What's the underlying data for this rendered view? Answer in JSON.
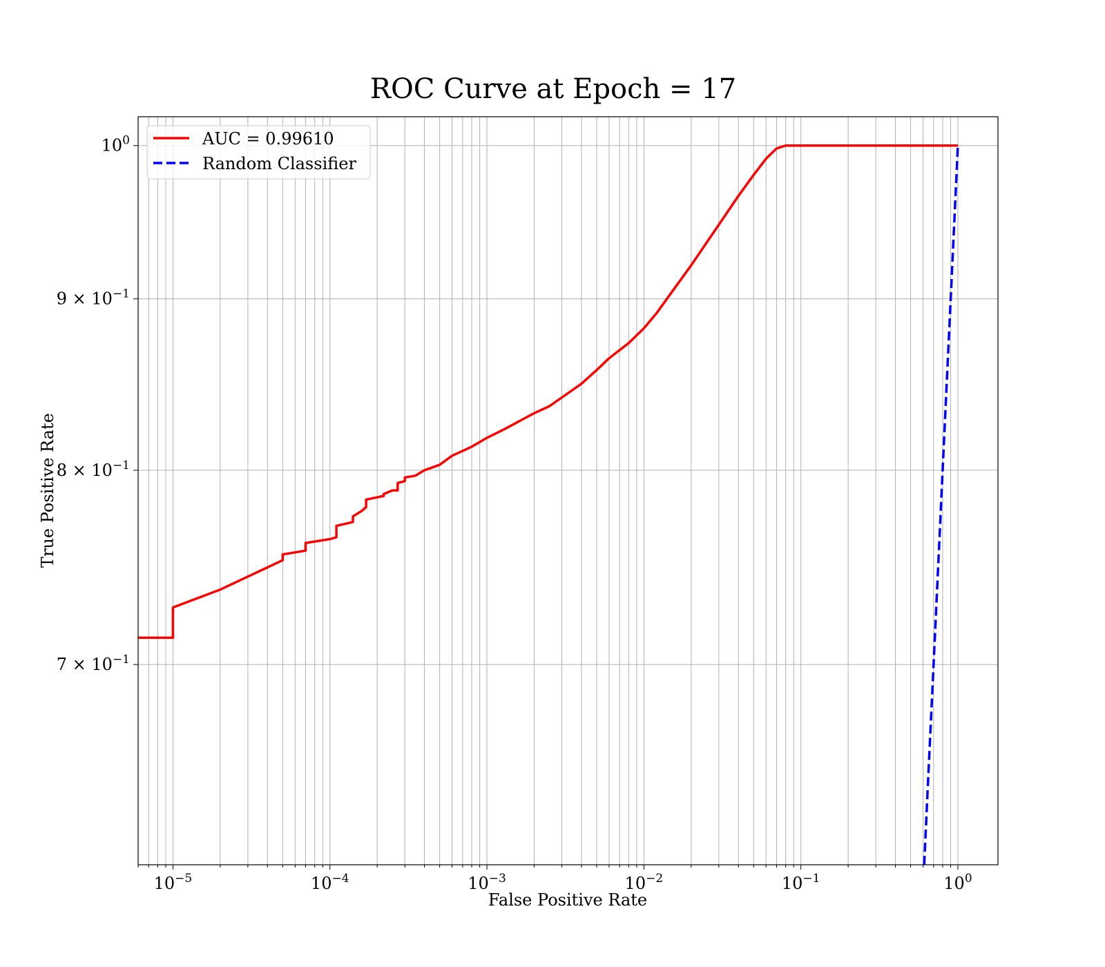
{
  "chart_data": {
    "type": "line",
    "title": "ROC Curve at Epoch = 17",
    "xlabel": "False Positive Rate",
    "ylabel": "True Positive Rate",
    "xscale": "log",
    "yscale": "log",
    "xlim": [
      6e-06,
      1.8
    ],
    "ylim": [
      0.61,
      1.02
    ],
    "grid": true,
    "legend_position": "top-left",
    "x_tick_labels": [
      {
        "value": 1e-05,
        "base": "10",
        "exp": "−5"
      },
      {
        "value": 0.0001,
        "base": "10",
        "exp": "−4"
      },
      {
        "value": 0.001,
        "base": "10",
        "exp": "−3"
      },
      {
        "value": 0.01,
        "base": "10",
        "exp": "−2"
      },
      {
        "value": 0.1,
        "base": "10",
        "exp": "−1"
      },
      {
        "value": 1,
        "base": "10",
        "exp": "0"
      }
    ],
    "y_tick_labels": [
      {
        "value": 1.0,
        "mant": "",
        "base": "10",
        "exp": "0"
      },
      {
        "value": 0.9,
        "mant": "9 × ",
        "base": "10",
        "exp": "−1"
      },
      {
        "value": 0.8,
        "mant": "8 × ",
        "base": "10",
        "exp": "−1"
      },
      {
        "value": 0.7,
        "mant": "7 × ",
        "base": "10",
        "exp": "−1"
      }
    ],
    "series": [
      {
        "name": "AUC = 0.99610",
        "color": "#ff0000",
        "style": "solid",
        "x": [
          6e-06,
          1e-05,
          1e-05,
          2e-05,
          5e-05,
          5e-05,
          7e-05,
          7e-05,
          0.0001,
          0.00011,
          0.00011,
          0.00014,
          0.00014,
          0.00016,
          0.00017,
          0.00017,
          0.00022,
          0.00022,
          0.00025,
          0.00027,
          0.00027,
          0.0003,
          0.0003,
          0.00035,
          0.0004,
          0.0005,
          0.0006,
          0.0008,
          0.001,
          0.0013,
          0.0015,
          0.002,
          0.0025,
          0.003,
          0.004,
          0.005,
          0.006,
          0.008,
          0.01,
          0.012,
          0.015,
          0.02,
          0.03,
          0.04,
          0.05,
          0.06,
          0.07,
          0.08,
          0.1,
          0.2,
          0.5,
          1.0
        ],
        "y": [
          0.713,
          0.713,
          0.728,
          0.737,
          0.752,
          0.755,
          0.757,
          0.761,
          0.763,
          0.764,
          0.77,
          0.772,
          0.775,
          0.778,
          0.78,
          0.784,
          0.786,
          0.787,
          0.789,
          0.789,
          0.793,
          0.794,
          0.796,
          0.797,
          0.8,
          0.803,
          0.808,
          0.813,
          0.818,
          0.823,
          0.826,
          0.832,
          0.836,
          0.841,
          0.849,
          0.857,
          0.864,
          0.873,
          0.882,
          0.891,
          0.904,
          0.921,
          0.947,
          0.966,
          0.98,
          0.991,
          0.998,
          1.0,
          1.0,
          1.0,
          1.0,
          1.0
        ]
      },
      {
        "name": "Random Classifier",
        "color": "#0000ff",
        "style": "dashed",
        "x": [
          0.61,
          0.65,
          0.7,
          0.75,
          0.8,
          0.85,
          0.9,
          0.95,
          1.0
        ],
        "y": [
          0.61,
          0.65,
          0.7,
          0.75,
          0.8,
          0.85,
          0.9,
          0.95,
          1.0
        ]
      }
    ]
  }
}
